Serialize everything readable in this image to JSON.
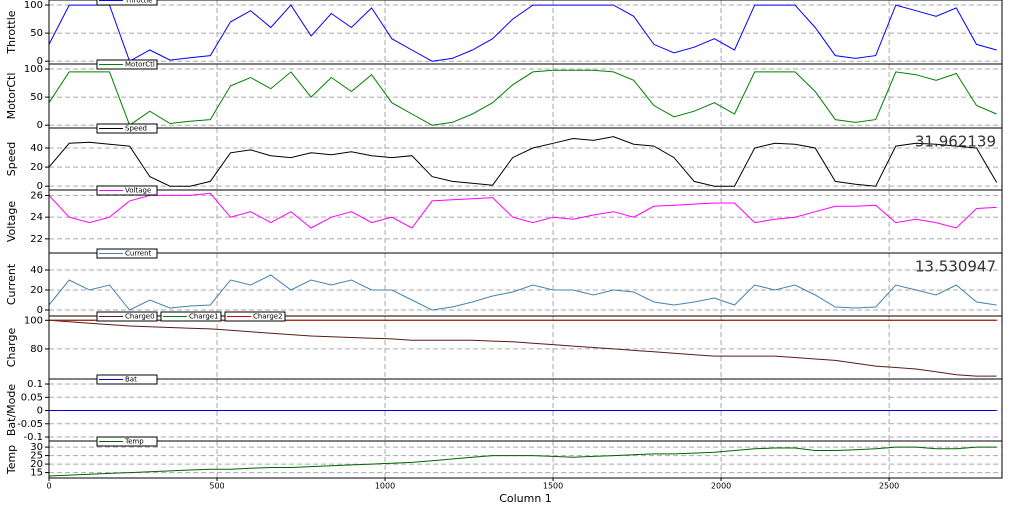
{
  "chart_data": [
    {
      "type": "line",
      "ylabel": "Throttle",
      "xlim": [
        0,
        2836
      ],
      "ylim": [
        -5,
        109
      ],
      "yticks": [
        0,
        50,
        100
      ],
      "grid": true,
      "x": [
        0,
        60,
        120,
        180,
        240,
        300,
        360,
        420,
        480,
        540,
        600,
        660,
        720,
        780,
        840,
        900,
        960,
        1020,
        1080,
        1140,
        1200,
        1260,
        1320,
        1380,
        1440,
        1500,
        1560,
        1620,
        1680,
        1740,
        1800,
        1860,
        1920,
        1980,
        2040,
        2100,
        2160,
        2220,
        2280,
        2340,
        2400,
        2460,
        2520,
        2580,
        2640,
        2700,
        2760,
        2820
      ],
      "series": [
        {
          "name": "Throttle",
          "color": "#0000ff",
          "values": [
            30,
            100,
            100,
            100,
            0,
            20,
            2,
            6,
            10,
            70,
            90,
            60,
            100,
            45,
            85,
            60,
            95,
            40,
            20,
            0,
            5,
            20,
            40,
            75,
            100,
            100,
            100,
            100,
            100,
            80,
            30,
            15,
            25,
            40,
            20,
            100,
            100,
            100,
            60,
            10,
            5,
            10,
            100,
            90,
            80,
            95,
            30,
            20
          ]
        }
      ]
    },
    {
      "type": "line",
      "ylabel": "MotorCtl",
      "xlim": [
        0,
        2836
      ],
      "ylim": [
        -5,
        109
      ],
      "yticks": [
        0,
        50,
        100
      ],
      "grid": true,
      "x": [
        0,
        60,
        120,
        180,
        240,
        300,
        360,
        420,
        480,
        540,
        600,
        660,
        720,
        780,
        840,
        900,
        960,
        1020,
        1080,
        1140,
        1200,
        1260,
        1320,
        1380,
        1440,
        1500,
        1560,
        1620,
        1680,
        1740,
        1800,
        1860,
        1920,
        1980,
        2040,
        2100,
        2160,
        2220,
        2280,
        2340,
        2400,
        2460,
        2520,
        2580,
        2640,
        2700,
        2760,
        2820
      ],
      "series": [
        {
          "name": "MotorCtl",
          "color": "#008000",
          "values": [
            40,
            95,
            95,
            95,
            0,
            25,
            3,
            7,
            10,
            70,
            85,
            65,
            95,
            50,
            85,
            60,
            90,
            40,
            20,
            0,
            5,
            20,
            40,
            72,
            95,
            98,
            98,
            98,
            95,
            80,
            35,
            15,
            25,
            40,
            20,
            95,
            95,
            95,
            60,
            10,
            5,
            10,
            95,
            90,
            80,
            92,
            35,
            20
          ]
        }
      ]
    },
    {
      "type": "line",
      "ylabel": "Speed",
      "xlim": [
        0,
        2836
      ],
      "ylim": [
        -4,
        61
      ],
      "yticks": [
        0,
        20,
        40
      ],
      "grid": true,
      "annotation": "31.962139",
      "x": [
        0,
        60,
        120,
        180,
        240,
        300,
        360,
        420,
        480,
        540,
        600,
        660,
        720,
        780,
        840,
        900,
        960,
        1020,
        1080,
        1140,
        1200,
        1260,
        1320,
        1380,
        1440,
        1500,
        1560,
        1620,
        1680,
        1740,
        1800,
        1860,
        1920,
        1980,
        2040,
        2100,
        2160,
        2220,
        2280,
        2340,
        2400,
        2460,
        2520,
        2580,
        2640,
        2700,
        2760,
        2820
      ],
      "series": [
        {
          "name": "Speed",
          "color": "#000000",
          "values": [
            20,
            45,
            46,
            44,
            42,
            10,
            0,
            0,
            5,
            35,
            38,
            32,
            30,
            35,
            33,
            36,
            32,
            30,
            32,
            10,
            5,
            3,
            1,
            30,
            40,
            45,
            50,
            48,
            52,
            44,
            42,
            30,
            5,
            0,
            0,
            40,
            45,
            44,
            40,
            5,
            2,
            0,
            42,
            45,
            44,
            42,
            40,
            4
          ]
        }
      ]
    },
    {
      "type": "line",
      "ylabel": "Voltage",
      "xlim": [
        0,
        2836
      ],
      "ylim": [
        20.7,
        26.5
      ],
      "yticks": [
        22,
        24,
        26
      ],
      "grid": true,
      "x": [
        0,
        60,
        120,
        180,
        240,
        300,
        360,
        420,
        480,
        540,
        600,
        660,
        720,
        780,
        840,
        900,
        960,
        1020,
        1080,
        1140,
        1200,
        1260,
        1320,
        1380,
        1440,
        1500,
        1560,
        1620,
        1680,
        1740,
        1800,
        1860,
        1920,
        1980,
        2040,
        2100,
        2160,
        2220,
        2280,
        2340,
        2400,
        2460,
        2520,
        2580,
        2640,
        2700,
        2760,
        2820
      ],
      "series": [
        {
          "name": "Voltage",
          "color": "#ff00ff",
          "values": [
            26,
            24,
            23.5,
            24,
            25.5,
            26,
            26,
            26,
            26.2,
            24,
            24.5,
            23.5,
            24.5,
            23,
            24,
            24.5,
            23.5,
            24,
            23,
            25.5,
            25.6,
            25.7,
            25.8,
            24,
            23.5,
            24,
            23.8,
            24.2,
            24.5,
            24,
            25,
            25.1,
            25.2,
            25.3,
            25.3,
            23.5,
            23.8,
            24,
            24.5,
            25,
            25,
            25.1,
            23.5,
            23.8,
            23.5,
            23,
            24.8,
            24.9
          ]
        }
      ]
    },
    {
      "type": "line",
      "ylabel": "Current",
      "xlim": [
        0,
        2836
      ],
      "ylim": [
        -6,
        57
      ],
      "yticks": [
        0,
        20,
        40
      ],
      "grid": true,
      "annotation": "13.530947",
      "x": [
        0,
        60,
        120,
        180,
        240,
        300,
        360,
        420,
        480,
        540,
        600,
        660,
        720,
        780,
        840,
        900,
        960,
        1020,
        1080,
        1140,
        1200,
        1260,
        1320,
        1380,
        1440,
        1500,
        1560,
        1620,
        1680,
        1740,
        1800,
        1860,
        1920,
        1980,
        2040,
        2100,
        2160,
        2220,
        2280,
        2340,
        2400,
        2460,
        2520,
        2580,
        2640,
        2700,
        2760,
        2820
      ],
      "series": [
        {
          "name": "Current",
          "color": "#4682b4",
          "values": [
            5,
            30,
            20,
            25,
            0,
            10,
            2,
            4,
            5,
            30,
            25,
            35,
            20,
            30,
            25,
            30,
            20,
            20,
            10,
            0,
            3,
            8,
            14,
            18,
            25,
            20,
            20,
            15,
            20,
            18,
            8,
            5,
            8,
            12,
            5,
            25,
            20,
            25,
            15,
            3,
            2,
            3,
            25,
            20,
            15,
            25,
            8,
            5
          ]
        }
      ]
    },
    {
      "type": "line",
      "ylabel": "Charge",
      "xlim": [
        0,
        2836
      ],
      "ylim": [
        59,
        103
      ],
      "yticks": [
        80,
        100
      ],
      "grid": true,
      "x": [
        0,
        60,
        120,
        180,
        240,
        300,
        360,
        420,
        480,
        540,
        600,
        660,
        720,
        780,
        840,
        900,
        960,
        1020,
        1080,
        1140,
        1200,
        1260,
        1320,
        1380,
        1440,
        1500,
        1560,
        1620,
        1680,
        1740,
        1800,
        1860,
        1920,
        1980,
        2040,
        2100,
        2160,
        2220,
        2280,
        2340,
        2400,
        2460,
        2520,
        2580,
        2640,
        2700,
        2760,
        2820
      ],
      "series": [
        {
          "name": "Charge0",
          "color": "#5a1a1a",
          "values": [
            100,
            99,
            98,
            97,
            96,
            95.5,
            95,
            94.5,
            94,
            93,
            92,
            91,
            90,
            89,
            88.5,
            88,
            87.5,
            87,
            86,
            86,
            86,
            86,
            85.5,
            85,
            84,
            83,
            82,
            81,
            80,
            79,
            78,
            77,
            76,
            75,
            75,
            75,
            75,
            74,
            73,
            72,
            70,
            68,
            67,
            66,
            64,
            62,
            61,
            61
          ]
        },
        {
          "name": "Charge1",
          "color": "#008000",
          "values": [
            100,
            100,
            100,
            100,
            100,
            100,
            100,
            100,
            100,
            100,
            100,
            100,
            100,
            100,
            100,
            100,
            100,
            100,
            100,
            100,
            100,
            100,
            100,
            100,
            100,
            100,
            100,
            100,
            100,
            100,
            100,
            100,
            100,
            100,
            100,
            100,
            100,
            100,
            100,
            100,
            100,
            100,
            100,
            100,
            100,
            100,
            100,
            100
          ]
        },
        {
          "name": "Charge2",
          "color": "#cc0000",
          "values": [
            100,
            100,
            100,
            100,
            100,
            100,
            100,
            100,
            100,
            100,
            100,
            100,
            100,
            100,
            100,
            100,
            100,
            100,
            100,
            100,
            100,
            100,
            100,
            100,
            100,
            100,
            100,
            100,
            100,
            100,
            100,
            100,
            100,
            100,
            100,
            100,
            100,
            100,
            100,
            100,
            100,
            100,
            100,
            100,
            100,
            100,
            100,
            100
          ]
        }
      ]
    },
    {
      "type": "line",
      "ylabel": "Bat/Mode",
      "xlim": [
        0,
        2836
      ],
      "ylim": [
        -0.115,
        0.119
      ],
      "yticks": [
        -0.1,
        -0.05,
        0,
        0.05,
        0.1
      ],
      "grid": true,
      "x": [
        0,
        60,
        120,
        180,
        240,
        300,
        360,
        420,
        480,
        540,
        600,
        660,
        720,
        780,
        840,
        900,
        960,
        1020,
        1080,
        1140,
        1200,
        1260,
        1320,
        1380,
        1440,
        1500,
        1560,
        1620,
        1680,
        1740,
        1800,
        1860,
        1920,
        1980,
        2040,
        2100,
        2160,
        2220,
        2280,
        2340,
        2400,
        2460,
        2520,
        2580,
        2640,
        2700,
        2760,
        2820
      ],
      "series": [
        {
          "name": "Bat",
          "color": "#0000cc",
          "values": [
            0,
            0,
            0,
            0,
            0,
            0,
            0,
            0,
            0,
            0,
            0,
            0,
            0,
            0,
            0,
            0,
            0,
            0,
            0,
            0,
            0,
            0,
            0,
            0,
            0,
            0,
            0,
            0,
            0,
            0,
            0,
            0,
            0,
            0,
            0,
            0,
            0,
            0,
            0,
            0,
            0,
            0,
            0,
            0,
            0,
            0,
            0,
            0
          ]
        }
      ]
    },
    {
      "type": "line",
      "ylabel": "Temp",
      "xlabel": "Column 1",
      "xlim": [
        0,
        2836
      ],
      "ylim": [
        11.8,
        33.6
      ],
      "yticks": [
        15,
        20,
        25,
        30
      ],
      "xticks": [
        0,
        500,
        1000,
        1500,
        2000,
        2500
      ],
      "grid": true,
      "x": [
        0,
        60,
        120,
        180,
        240,
        300,
        360,
        420,
        480,
        540,
        600,
        660,
        720,
        780,
        840,
        900,
        960,
        1020,
        1080,
        1140,
        1200,
        1260,
        1320,
        1380,
        1440,
        1500,
        1560,
        1620,
        1680,
        1740,
        1800,
        1860,
        1920,
        1980,
        2040,
        2100,
        2160,
        2220,
        2280,
        2340,
        2400,
        2460,
        2520,
        2580,
        2640,
        2700,
        2760,
        2820
      ],
      "series": [
        {
          "name": "Temp",
          "color": "#006400",
          "values": [
            13,
            13.5,
            14,
            14.5,
            15,
            15.5,
            16,
            16.5,
            17,
            17,
            17.5,
            18,
            18,
            18.5,
            19,
            19.5,
            20,
            20.5,
            21,
            22,
            23,
            24,
            25,
            25,
            25,
            24.5,
            24,
            24.5,
            25,
            25.5,
            26,
            26,
            26.5,
            27,
            28,
            29,
            29.5,
            29.5,
            28,
            28,
            28.5,
            29,
            30,
            30,
            29,
            29,
            30,
            30
          ]
        }
      ]
    }
  ]
}
